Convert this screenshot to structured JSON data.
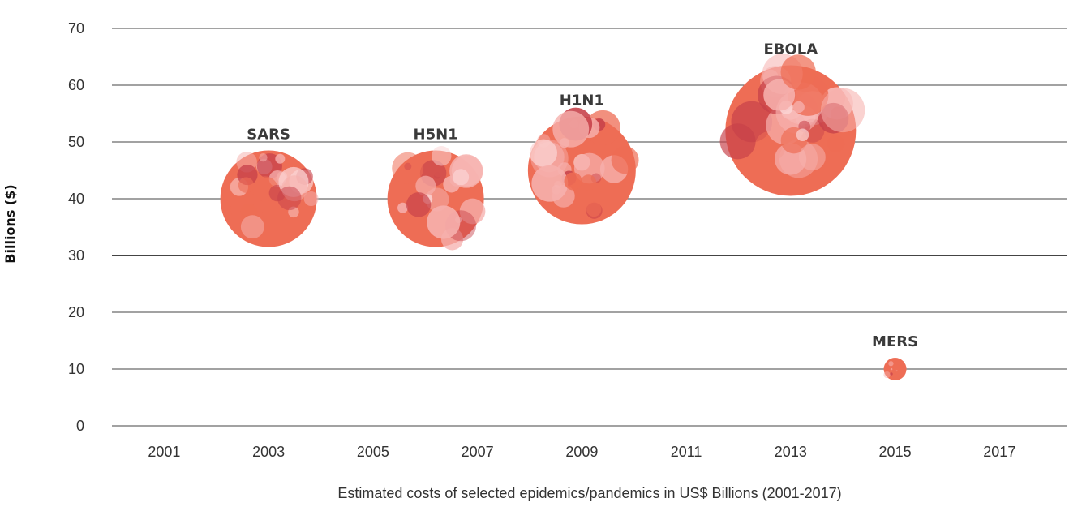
{
  "chart_data": {
    "type": "scatter",
    "xlabel": "Estimated costs of selected epidemics/pandemics in US$ Billions (2001-2017)",
    "ylabel": "Billions ($)",
    "xlim": [
      2000,
      2018.3
    ],
    "ylim": [
      0,
      70
    ],
    "x_ticks": [
      "2001",
      "2003",
      "2005",
      "2007",
      "2009",
      "2011",
      "2013",
      "2015",
      "2017"
    ],
    "y_ticks": [
      "0",
      "10",
      "20",
      "30",
      "40",
      "50",
      "60",
      "70"
    ],
    "grid": true,
    "points": [
      {
        "label": "SARS",
        "x": 2003.0,
        "y": 40,
        "size": 8.5
      },
      {
        "label": "H5N1",
        "x": 2006.2,
        "y": 40,
        "size": 8.5
      },
      {
        "label": "H1N1",
        "x": 2009.0,
        "y": 45,
        "size": 9.5
      },
      {
        "label": "EBOLA",
        "x": 2013.0,
        "y": 52,
        "size": 11.5
      },
      {
        "label": "MERS",
        "x": 2015.0,
        "y": 10,
        "size": 2
      }
    ]
  },
  "colors": {
    "bubble_base": "#ee6d55",
    "bubble_light": "#f6b0ad",
    "bubble_pale": "#fbd3d3",
    "bubble_dark": "#c7414a",
    "grid": "#444444",
    "text": "#333333"
  }
}
